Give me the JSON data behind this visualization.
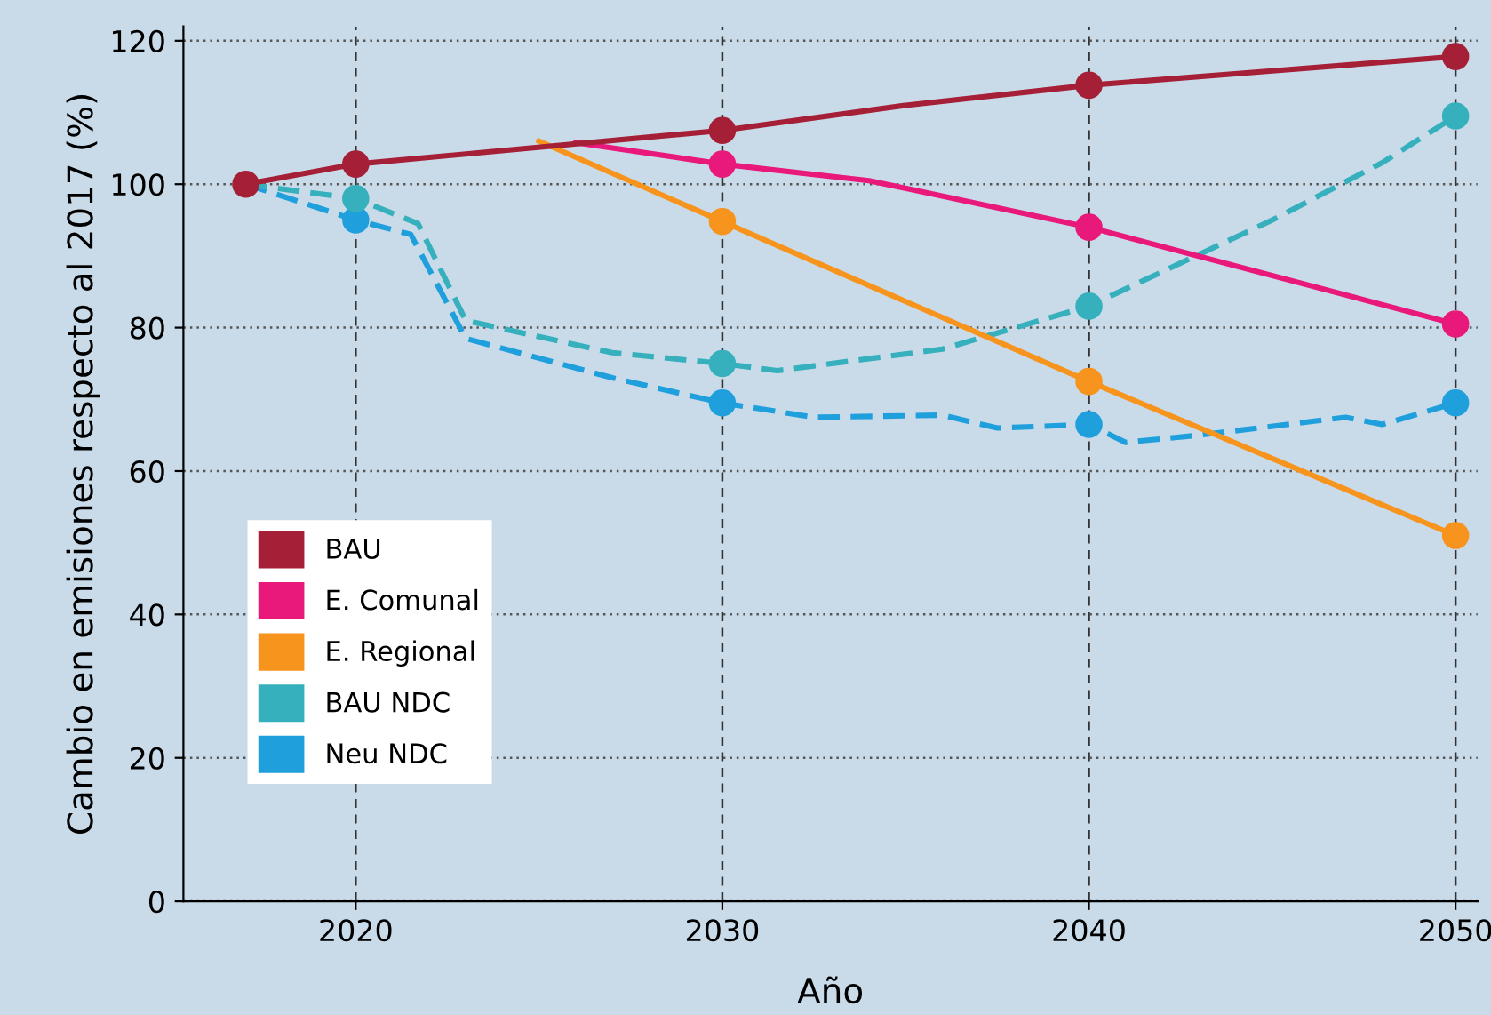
{
  "chart_data": {
    "type": "line",
    "xlabel": "Año",
    "ylabel": "Cambio en emisiones respecto al 2017 (%)",
    "xlim": [
      2015.3,
      2050.6
    ],
    "ylim": [
      0,
      122
    ],
    "xticks": [
      2020,
      2030,
      2040,
      2050
    ],
    "yticks": [
      0,
      20,
      40,
      60,
      80,
      100,
      120
    ],
    "grid": true,
    "legend": "bottom left",
    "marker": "circle",
    "series": [
      {
        "name": "BAU",
        "color": "#a51f36",
        "line_style": "solid",
        "x": [
          2017,
          2020,
          2030,
          2035,
          2040,
          2045,
          2050
        ],
        "values": [
          100,
          102.8,
          107.5,
          111,
          113.8,
          115.8,
          117.8
        ]
      },
      {
        "name": "E. Comunal",
        "color": "#e8197a",
        "line_style": "solid",
        "x": [
          2026,
          2030,
          2034,
          2040,
          2050
        ],
        "values": [
          105.8,
          102.8,
          100.5,
          94,
          80.5
        ]
      },
      {
        "name": "E. Regional",
        "color": "#f7941d",
        "line_style": "solid",
        "x": [
          2025,
          2030,
          2040,
          2050
        ],
        "values": [
          106,
          94.8,
          72.5,
          51
        ]
      },
      {
        "type": "scatter",
        "color": "#36b0bd",
        "x": [
          2020,
          2030,
          2040,
          2050
        ],
        "values": [
          98,
          75,
          83,
          109.5
        ]
      },
      {
        "type": "scatter",
        "color": "#1f9fdc",
        "x": [
          2020,
          2030,
          2040,
          2050
        ],
        "values": [
          95,
          69.5,
          66.5,
          69.5
        ]
      },
      {
        "name": "BAU NDC",
        "color": "#36b0bd",
        "line_style": "dashed",
        "marker": "none",
        "x": [
          2017,
          2020,
          2021.7,
          2023,
          2027,
          2030,
          2031.5,
          2036,
          2038,
          2040,
          2045,
          2048,
          2050
        ],
        "values": [
          100,
          98,
          94.5,
          81,
          76.5,
          75,
          74,
          77,
          80,
          83,
          95,
          103,
          109.5
        ]
      },
      {
        "name": "Neu NDC",
        "color": "#1f9fdc",
        "line_style": "dashed",
        "marker": "none",
        "x": [
          2017,
          2020,
          2021.5,
          2023,
          2027,
          2030,
          2032.5,
          2036,
          2037.5,
          2040,
          2041,
          2043,
          2047,
          2048,
          2050
        ],
        "values": [
          100,
          95,
          93,
          78.5,
          73,
          69.5,
          67.5,
          67.8,
          66,
          66.5,
          64,
          65,
          67.5,
          66.5,
          69.5
        ]
      }
    ]
  }
}
